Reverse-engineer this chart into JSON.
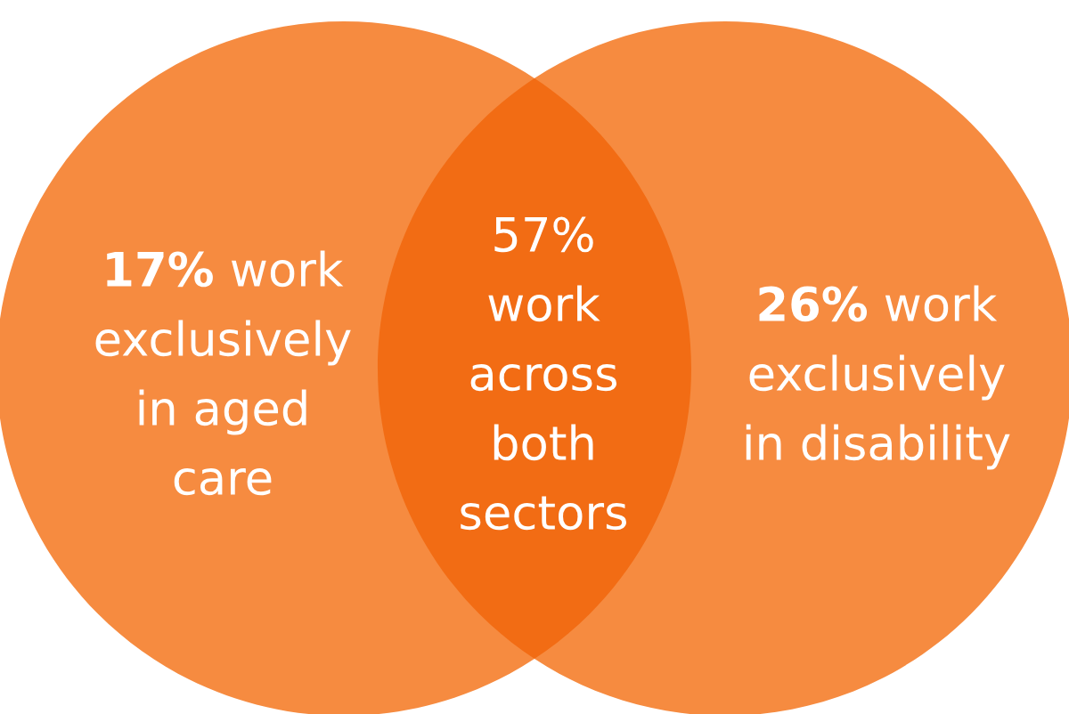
{
  "chart_data": {
    "type": "other",
    "categories": [
      "work\nexclusively\nin aged\ncare",
      "work\nacross\nboth\nsectors",
      "work\nexclusively\nin disability"
    ],
    "values": [
      17,
      57,
      26
    ],
    "value_labels": [
      "17%",
      "57%",
      "26%"
    ],
    "colors": [
      "#f68b40",
      "#f26c14",
      "#f68b40"
    ]
  }
}
